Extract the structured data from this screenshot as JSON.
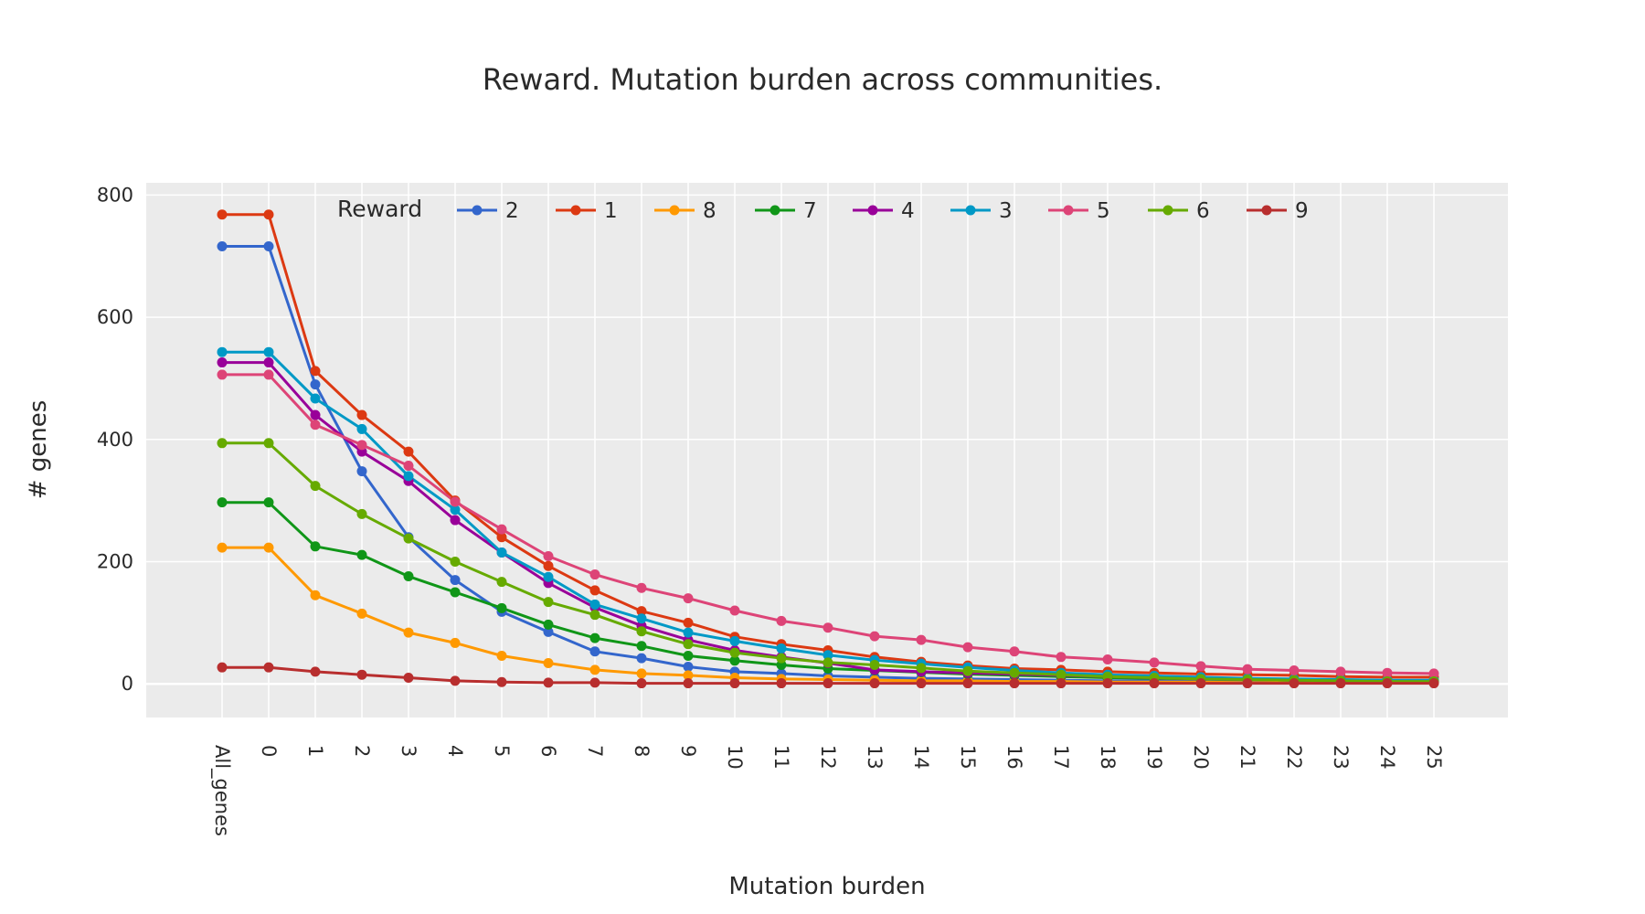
{
  "chart_data": {
    "type": "line",
    "title": "Reward. Mutation burden across communities.",
    "xlabel": "Mutation burden",
    "ylabel": "# genes",
    "ylim": [
      -55,
      820
    ],
    "yticks": [
      0,
      200,
      400,
      600,
      800
    ],
    "grid": true,
    "legend": {
      "title": "Reward",
      "placement": "top, horizontal, inside plot"
    },
    "categories": [
      "All_genes",
      "0",
      "1",
      "2",
      "3",
      "4",
      "5",
      "6",
      "7",
      "8",
      "9",
      "10",
      "11",
      "12",
      "13",
      "14",
      "15",
      "16",
      "17",
      "18",
      "19",
      "20",
      "21",
      "22",
      "23",
      "24",
      "25"
    ],
    "series": [
      {
        "name": "2",
        "color": "#3366CC",
        "values": [
          716,
          716,
          490,
          348,
          240,
          170,
          118,
          85,
          53,
          42,
          28,
          20,
          17,
          13,
          11,
          9,
          8,
          7,
          6,
          5,
          5,
          4,
          3,
          3,
          2,
          2,
          2
        ]
      },
      {
        "name": "1",
        "color": "#DC3912",
        "values": [
          768,
          768,
          512,
          440,
          380,
          300,
          240,
          193,
          153,
          119,
          100,
          77,
          65,
          55,
          44,
          36,
          30,
          25,
          23,
          20,
          18,
          16,
          15,
          14,
          12,
          11,
          11
        ]
      },
      {
        "name": "8",
        "color": "#FF9900",
        "values": [
          223,
          223,
          145,
          115,
          84,
          67,
          46,
          34,
          23,
          17,
          14,
          10,
          8,
          7,
          6,
          5,
          5,
          4,
          4,
          3,
          3,
          3,
          2,
          2,
          2,
          2,
          2
        ]
      },
      {
        "name": "7",
        "color": "#109618",
        "values": [
          297,
          297,
          225,
          211,
          176,
          150,
          124,
          97,
          75,
          62,
          46,
          38,
          31,
          25,
          22,
          19,
          16,
          14,
          12,
          10,
          9,
          8,
          7,
          6,
          5,
          5,
          4
        ]
      },
      {
        "name": "4",
        "color": "#990099",
        "values": [
          526,
          526,
          440,
          380,
          332,
          268,
          215,
          165,
          125,
          95,
          72,
          55,
          44,
          34,
          23,
          20,
          18,
          16,
          14,
          12,
          10,
          8,
          7,
          6,
          5,
          4,
          4
        ]
      },
      {
        "name": "3",
        "color": "#0099C6",
        "values": [
          543,
          543,
          467,
          417,
          340,
          285,
          215,
          175,
          130,
          107,
          84,
          70,
          58,
          47,
          39,
          33,
          27,
          22,
          18,
          15,
          13,
          11,
          9,
          8,
          7,
          6,
          6
        ]
      },
      {
        "name": "5",
        "color": "#DD4477",
        "values": [
          506,
          506,
          424,
          391,
          357,
          298,
          253,
          209,
          179,
          157,
          140,
          120,
          103,
          92,
          78,
          72,
          60,
          53,
          44,
          40,
          35,
          29,
          24,
          22,
          20,
          18,
          17
        ]
      },
      {
        "name": "6",
        "color": "#66AA00",
        "values": [
          394,
          394,
          324,
          278,
          238,
          200,
          167,
          134,
          113,
          86,
          65,
          51,
          42,
          35,
          31,
          26,
          21,
          18,
          15,
          12,
          10,
          8,
          7,
          6,
          5,
          4,
          4
        ]
      },
      {
        "name": "9",
        "color": "#B82E2E",
        "values": [
          27,
          27,
          20,
          15,
          10,
          5,
          3,
          2,
          2,
          1,
          1,
          1,
          1,
          1,
          1,
          1,
          1,
          1,
          1,
          1,
          1,
          1,
          1,
          1,
          1,
          1,
          1
        ]
      }
    ]
  }
}
